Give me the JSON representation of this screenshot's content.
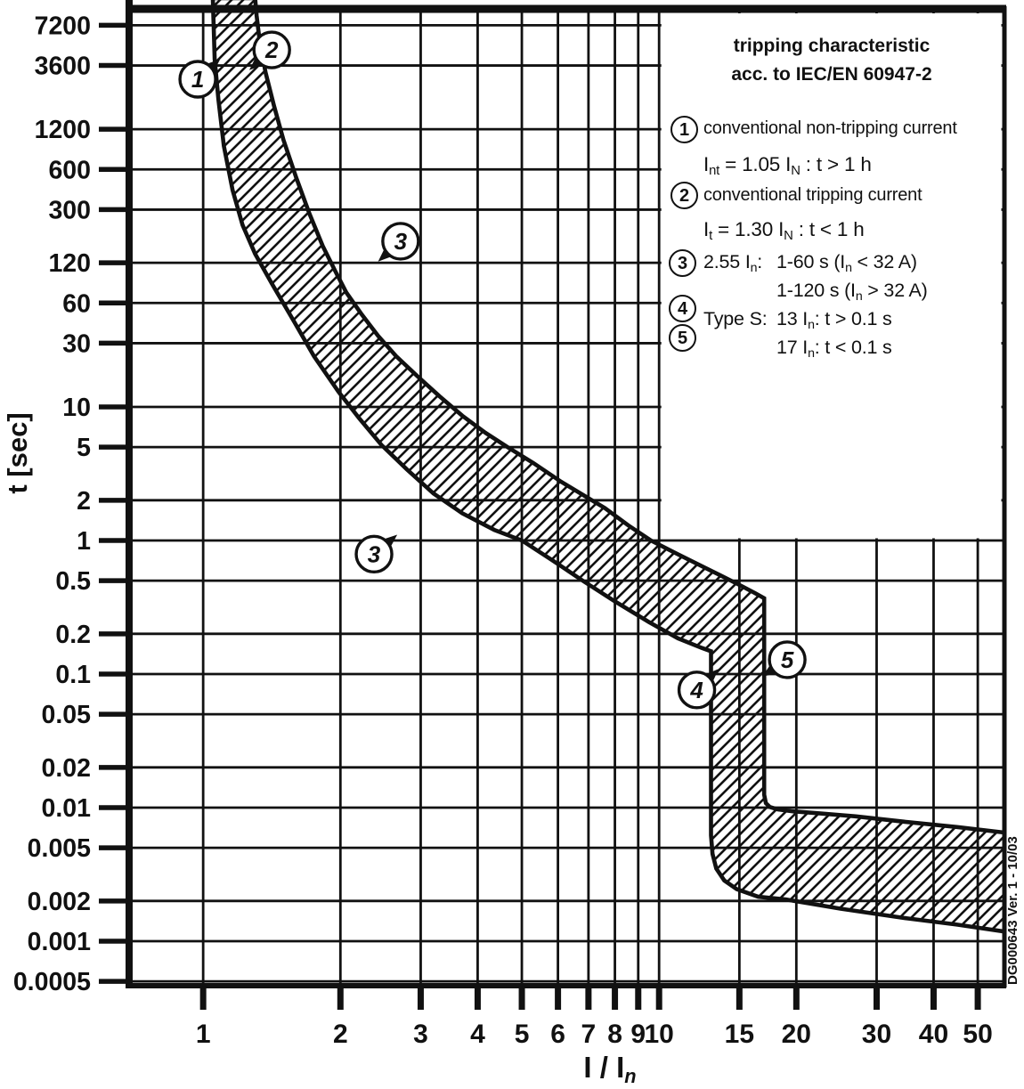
{
  "title_block": {
    "line1": "tripping characteristic",
    "line2": "acc. to IEC/EN 60947-2"
  },
  "legend": {
    "items": [
      {
        "num": "1",
        "line1": "conventional non-tripping current",
        "line2_html": "I<sub>nt</sub> = 1.05 I<sub>N</sub> : t > 1 h"
      },
      {
        "num": "2",
        "line1": "conventional tripping current",
        "line2_html": "I<sub>t</sub> = 1.30 I<sub>N</sub> : t &lt; 1 h"
      },
      {
        "num": "3",
        "label_html": "2.55 I<sub>n</sub>:",
        "value1_html": "1-60 s (I<sub>n</sub> &lt; 32 A)",
        "value2_html": "1-120 s (I<sub>n</sub> > 32 A)"
      },
      {
        "num": "4",
        "label_html": "Type S:",
        "value1_html": "13 I<sub>n</sub>: t > 0.1 s"
      },
      {
        "num": "5",
        "label_html": "",
        "value1_html": "17 I<sub>n</sub>: t &lt; 0.1 s"
      }
    ]
  },
  "side_note": "DG000643   Ver. 1 - 10/03",
  "chart_data": {
    "type": "area",
    "title": "tripping characteristic acc. to IEC/EN 60947-2",
    "xlabel_html": "I / I<sub><i>n</i></sub>",
    "ylabel": "t [sec]",
    "x_scale": "log",
    "y_scale": "log",
    "x_range": [
      0.688,
      57.2
    ],
    "y_range": [
      0.000464,
      10000
    ],
    "grid": true,
    "ink": "#111111",
    "x_ticks": [
      {
        "v": 1,
        "label": "1"
      },
      {
        "v": 2,
        "label": "2"
      },
      {
        "v": 3,
        "label": "3"
      },
      {
        "v": 4,
        "label": "4"
      },
      {
        "v": 5,
        "label": "5"
      },
      {
        "v": 6,
        "label": "6"
      },
      {
        "v": 7,
        "label": "7"
      },
      {
        "v": 8,
        "label": "8"
      },
      {
        "v": 9,
        "label": "9"
      },
      {
        "v": 10,
        "label": "10"
      },
      {
        "v": 15,
        "label": "15"
      },
      {
        "v": 20,
        "label": "20"
      },
      {
        "v": 30,
        "label": "30"
      },
      {
        "v": 40,
        "label": "40"
      },
      {
        "v": 50,
        "label": "50"
      }
    ],
    "y_ticks": [
      {
        "v": 7200,
        "label": "7200"
      },
      {
        "v": 3600,
        "label": "3600"
      },
      {
        "v": 1200,
        "label": "1200"
      },
      {
        "v": 600,
        "label": "600"
      },
      {
        "v": 300,
        "label": "300"
      },
      {
        "v": 120,
        "label": "120"
      },
      {
        "v": 60,
        "label": "60"
      },
      {
        "v": 30,
        "label": "30"
      },
      {
        "v": 10,
        "label": "10"
      },
      {
        "v": 5,
        "label": "5"
      },
      {
        "v": 2,
        "label": "2"
      },
      {
        "v": 1,
        "label": "1"
      },
      {
        "v": 0.5,
        "label": "0.5"
      },
      {
        "v": 0.2,
        "label": "0.2"
      },
      {
        "v": 0.1,
        "label": "0.1"
      },
      {
        "v": 0.05,
        "label": "0.05"
      },
      {
        "v": 0.02,
        "label": "0.02"
      },
      {
        "v": 0.01,
        "label": "0.01"
      },
      {
        "v": 0.005,
        "label": "0.005"
      },
      {
        "v": 0.002,
        "label": "0.002"
      },
      {
        "v": 0.001,
        "label": "0.001"
      },
      {
        "v": 0.0005,
        "label": "0.0005"
      }
    ],
    "band_polygon": [
      [
        1.05,
        11500
      ],
      [
        1.06,
        4000
      ],
      [
        1.08,
        2000
      ],
      [
        1.11,
        900
      ],
      [
        1.16,
        420
      ],
      [
        1.22,
        230
      ],
      [
        1.3,
        140
      ],
      [
        1.42,
        82
      ],
      [
        1.58,
        44
      ],
      [
        1.75,
        24
      ],
      [
        1.98,
        13
      ],
      [
        2.2,
        8.2
      ],
      [
        2.46,
        5.2
      ],
      [
        2.8,
        3.4
      ],
      [
        3.2,
        2.25
      ],
      [
        3.7,
        1.6
      ],
      [
        4.35,
        1.2
      ],
      [
        5.0,
        1.0
      ],
      [
        5.8,
        0.72
      ],
      [
        6.8,
        0.5
      ],
      [
        8.0,
        0.35
      ],
      [
        9.5,
        0.245
      ],
      [
        11.0,
        0.185
      ],
      [
        12.4,
        0.157
      ],
      [
        13.0,
        0.148
      ],
      [
        13.0,
        0.0062
      ],
      [
        13.1,
        0.0045
      ],
      [
        13.35,
        0.0035
      ],
      [
        13.9,
        0.00285
      ],
      [
        14.8,
        0.00245
      ],
      [
        16.5,
        0.00215
      ],
      [
        19.0,
        0.00205
      ],
      [
        25.0,
        0.00175
      ],
      [
        35.0,
        0.00148
      ],
      [
        45.0,
        0.00133
      ],
      [
        57.2,
        0.00118
      ],
      [
        57.2,
        0.0065
      ],
      [
        45.0,
        0.00715
      ],
      [
        35.0,
        0.0078
      ],
      [
        27.0,
        0.0086
      ],
      [
        22.0,
        0.0091
      ],
      [
        19.5,
        0.0094
      ],
      [
        18.2,
        0.0097
      ],
      [
        17.5,
        0.0101
      ],
      [
        17.15,
        0.0108
      ],
      [
        17.0,
        0.0125
      ],
      [
        17.0,
        0.37
      ],
      [
        16.2,
        0.405
      ],
      [
        15.0,
        0.465
      ],
      [
        13.6,
        0.55
      ],
      [
        12.1,
        0.67
      ],
      [
        10.6,
        0.84
      ],
      [
        9.6,
        1.0
      ],
      [
        8.55,
        1.3
      ],
      [
        7.6,
        1.75
      ],
      [
        6.8,
        2.2
      ],
      [
        6.1,
        2.75
      ],
      [
        5.3,
        3.8
      ],
      [
        4.65,
        5.0
      ],
      [
        4.16,
        6.4
      ],
      [
        3.7,
        8.6
      ],
      [
        3.3,
        12
      ],
      [
        2.95,
        17
      ],
      [
        2.65,
        24
      ],
      [
        2.42,
        34
      ],
      [
        2.22,
        50
      ],
      [
        2.06,
        72
      ],
      [
        1.96,
        100
      ],
      [
        1.83,
        160
      ],
      [
        1.71,
        280
      ],
      [
        1.6,
        520
      ],
      [
        1.5,
        1000
      ],
      [
        1.43,
        1800
      ],
      [
        1.37,
        3200
      ],
      [
        1.33,
        5500
      ],
      [
        1.31,
        8500
      ],
      [
        1.3,
        11500
      ]
    ],
    "markers": [
      {
        "label": "1",
        "I": 0.973,
        "t": 2840,
        "pointer_deg": -42
      },
      {
        "label": "2",
        "I": 1.414,
        "t": 4710,
        "pointer_deg": 138
      },
      {
        "label": "3",
        "I": 2.71,
        "t": 174,
        "pointer_deg": 138
      },
      {
        "label": "3",
        "I": 2.37,
        "t": 0.79,
        "pointer_deg": -40
      },
      {
        "label": "4",
        "I": 12.1,
        "t": 0.076,
        "pointer_deg": -44
      },
      {
        "label": "5",
        "I": 19.1,
        "t": 0.128,
        "pointer_deg": 146
      }
    ]
  }
}
